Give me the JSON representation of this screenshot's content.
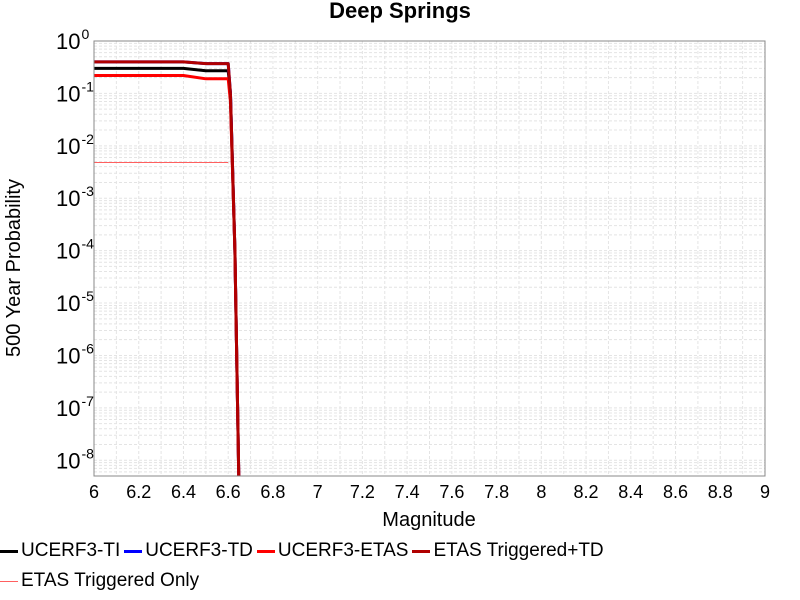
{
  "chart_data": {
    "type": "line",
    "title": "Deep Springs",
    "xlabel": "Magnitude",
    "ylabel": "500 Year Probability",
    "xlim": [
      6,
      9
    ],
    "ylim_log10": [
      -8.3,
      0
    ],
    "y_scale": "log",
    "grid": true,
    "x_ticks": [
      "6",
      "6.2",
      "6.4",
      "6.6",
      "6.8",
      "7",
      "7.2",
      "7.4",
      "7.6",
      "7.8",
      "8",
      "8.2",
      "8.4",
      "8.6",
      "8.8",
      "9"
    ],
    "y_ticks": [
      {
        "base": "10",
        "exp": "0",
        "log": 0
      },
      {
        "base": "10",
        "exp": "-1",
        "log": -1
      },
      {
        "base": "10",
        "exp": "-2",
        "log": -2
      },
      {
        "base": "10",
        "exp": "-3",
        "log": -3
      },
      {
        "base": "10",
        "exp": "-4",
        "log": -4
      },
      {
        "base": "10",
        "exp": "-5",
        "log": -5
      },
      {
        "base": "10",
        "exp": "-6",
        "log": -6
      },
      {
        "base": "10",
        "exp": "-7",
        "log": -7
      },
      {
        "base": "10",
        "exp": "-8",
        "log": -8
      }
    ],
    "legend_position": "bottom",
    "series": [
      {
        "name": "UCERF3-TI",
        "color": "#000000",
        "width": 3,
        "points": [
          [
            6.0,
            0.3
          ],
          [
            6.4,
            0.3
          ],
          [
            6.5,
            0.27
          ],
          [
            6.6,
            0.27
          ],
          [
            6.61,
            0.1
          ],
          [
            6.63,
            0.0001
          ],
          [
            6.65,
            1e-09
          ]
        ]
      },
      {
        "name": "UCERF3-TD",
        "color": "#0000ff",
        "width": 3,
        "points": [
          [
            6.0,
            0.4
          ],
          [
            6.4,
            0.4
          ],
          [
            6.5,
            0.37
          ],
          [
            6.6,
            0.37
          ],
          [
            6.61,
            0.1
          ],
          [
            6.63,
            0.0001
          ],
          [
            6.65,
            1e-09
          ]
        ]
      },
      {
        "name": "UCERF3-ETAS",
        "color": "#ff0000",
        "width": 3,
        "points": [
          [
            6.0,
            0.22
          ],
          [
            6.4,
            0.22
          ],
          [
            6.5,
            0.19
          ],
          [
            6.6,
            0.19
          ],
          [
            6.61,
            0.07
          ],
          [
            6.63,
            0.0001
          ],
          [
            6.65,
            1e-09
          ]
        ]
      },
      {
        "name": "ETAS Triggered+TD",
        "color": "#b00000",
        "width": 3,
        "points": [
          [
            6.0,
            0.4
          ],
          [
            6.4,
            0.4
          ],
          [
            6.5,
            0.37
          ],
          [
            6.6,
            0.37
          ],
          [
            6.61,
            0.1
          ],
          [
            6.63,
            0.0001
          ],
          [
            6.65,
            1e-09
          ]
        ]
      },
      {
        "name": "ETAS Triggered Only",
        "color": "#ff6060",
        "width": 1,
        "points": [
          [
            6.0,
            0.0048
          ],
          [
            6.6,
            0.0048
          ]
        ]
      }
    ]
  }
}
